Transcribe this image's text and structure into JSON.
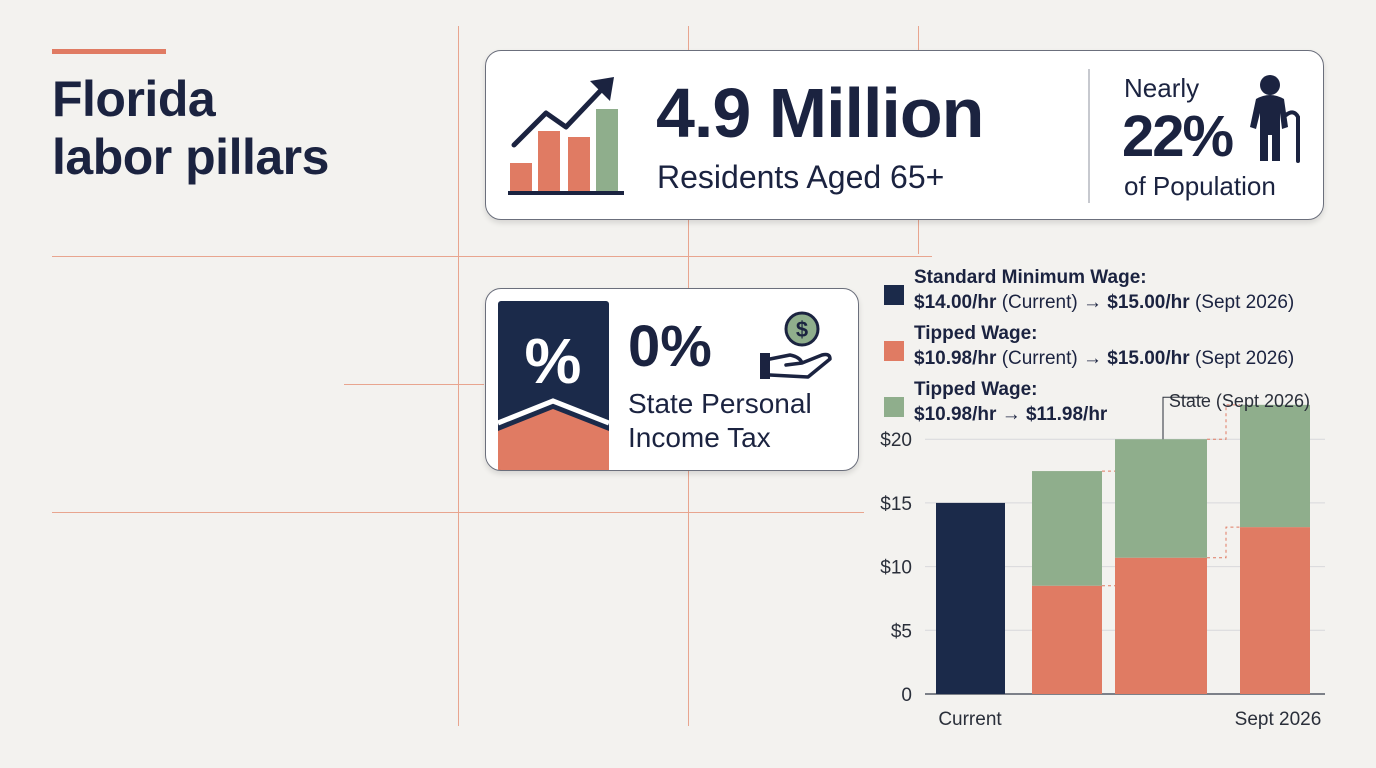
{
  "title_lines": [
    "Florida",
    "labor pillars"
  ],
  "population_card": {
    "value": "4.9 Million",
    "label": "Residents Aged 65+",
    "prefix": "Nearly",
    "share": "22%",
    "share_label": "of Population",
    "icons": [
      "bar-chart-trend-icon",
      "elderly-person-icon"
    ]
  },
  "tax_card": {
    "badge_symbol": "%",
    "value": "0%",
    "label_lines": [
      "State Personal",
      "Income Tax"
    ],
    "icon": "hand-holding-dollar-icon",
    "dollar_glyph": "$"
  },
  "legend": [
    {
      "title": "Standard Minimum Wage:",
      "from": "$14.00/hr",
      "from_note": "(Current)",
      "arrow": "→",
      "to": "$15.00/hr",
      "to_note": "(Sept 2026)",
      "color": "#1b2a4a"
    },
    {
      "title": "Tipped Wage:",
      "from": "$10.98/hr",
      "from_note": "(Current)",
      "arrow": "→",
      "to": "$15.00/hr",
      "to_note": "(Sept 2026)",
      "color": "#e07b63"
    },
    {
      "title": "Tipped Wage:",
      "from": "$10.98/hr",
      "from_note": "",
      "arrow": "→",
      "to": "$11.98/hr",
      "to_note": "",
      "color": "#8fae8c"
    }
  ],
  "colors": {
    "navy": "#1b2a4a",
    "coral": "#e07b63",
    "sage": "#8fae8c",
    "grid": "#e8a58f"
  },
  "chart_data": {
    "type": "bar",
    "stacked": true,
    "y_ticks": [
      "0",
      "$5",
      "$10",
      "$15",
      "$20"
    ],
    "ylim": [
      0,
      23
    ],
    "x_labels": [
      "Current",
      "Sept 2026"
    ],
    "annotation": "State (Sept 2026)",
    "grid": true,
    "bars": [
      {
        "segments": [
          {
            "value": 15.0,
            "color": "#1b2a4a"
          }
        ]
      },
      {
        "segments": [
          {
            "value": 8.5,
            "color": "#e07b63"
          },
          {
            "value": 9.0,
            "color": "#8fae8c"
          }
        ]
      },
      {
        "segments": [
          {
            "value": 10.7,
            "color": "#e07b63"
          },
          {
            "value": 9.3,
            "color": "#8fae8c"
          }
        ]
      },
      {
        "segments": [
          {
            "value": 13.1,
            "color": "#e07b63"
          },
          {
            "value": 9.6,
            "color": "#8fae8c"
          }
        ]
      }
    ]
  }
}
